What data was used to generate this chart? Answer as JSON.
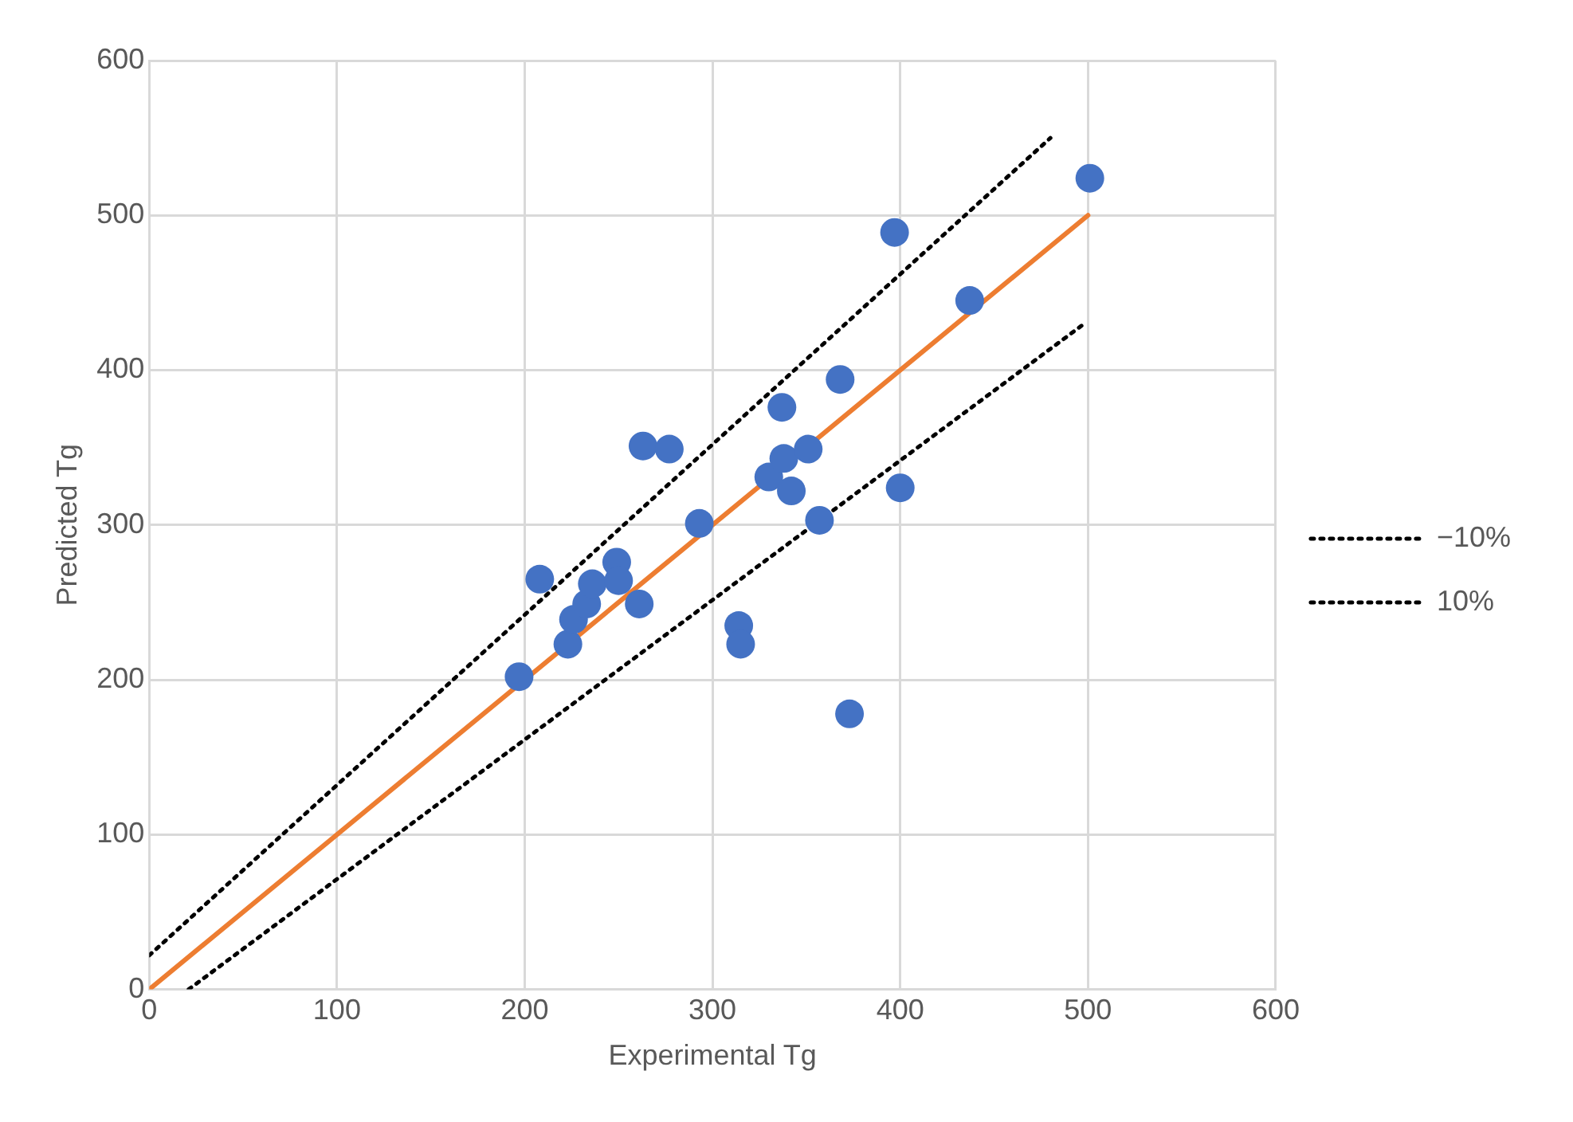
{
  "chart_data": {
    "type": "scatter",
    "xlabel": "Experimental Tg",
    "ylabel": "Predicted Tg",
    "xlim": [
      0,
      600
    ],
    "ylim": [
      0,
      600
    ],
    "xticks": [
      0,
      100,
      200,
      300,
      400,
      500,
      600
    ],
    "yticks": [
      0,
      100,
      200,
      300,
      400,
      500,
      600
    ],
    "grid": true,
    "legend": "right",
    "series": [
      {
        "marker": "circle",
        "color": "#4472c4",
        "x": [
          208,
          197,
          223,
          226,
          233,
          236,
          249,
          250,
          261,
          293,
          314,
          315,
          373,
          337,
          330,
          338,
          351,
          342,
          357,
          400,
          263,
          277,
          397,
          437,
          368,
          501
        ],
        "values": [
          265,
          202,
          223,
          239,
          249,
          262,
          276,
          264,
          249,
          301,
          235,
          223,
          178,
          376,
          331,
          343,
          349,
          322,
          303,
          324,
          351,
          349,
          489,
          445,
          394,
          524
        ]
      },
      {
        "type": "line",
        "marker": "none",
        "color": "#ed7d31",
        "line_style": "solid",
        "x": [
          0,
          500
        ],
        "values": [
          0,
          500
        ]
      },
      {
        "type": "line",
        "marker": "none",
        "name": "−10%",
        "color": "#000000",
        "line_style": "dotted",
        "x": [
          0,
          480
        ],
        "values": [
          22,
          550
        ]
      },
      {
        "type": "line",
        "marker": "none",
        "name": "10%",
        "color": "#000000",
        "line_style": "dotted",
        "x": [
          21,
          498
        ],
        "values": [
          0,
          430
        ]
      }
    ]
  }
}
